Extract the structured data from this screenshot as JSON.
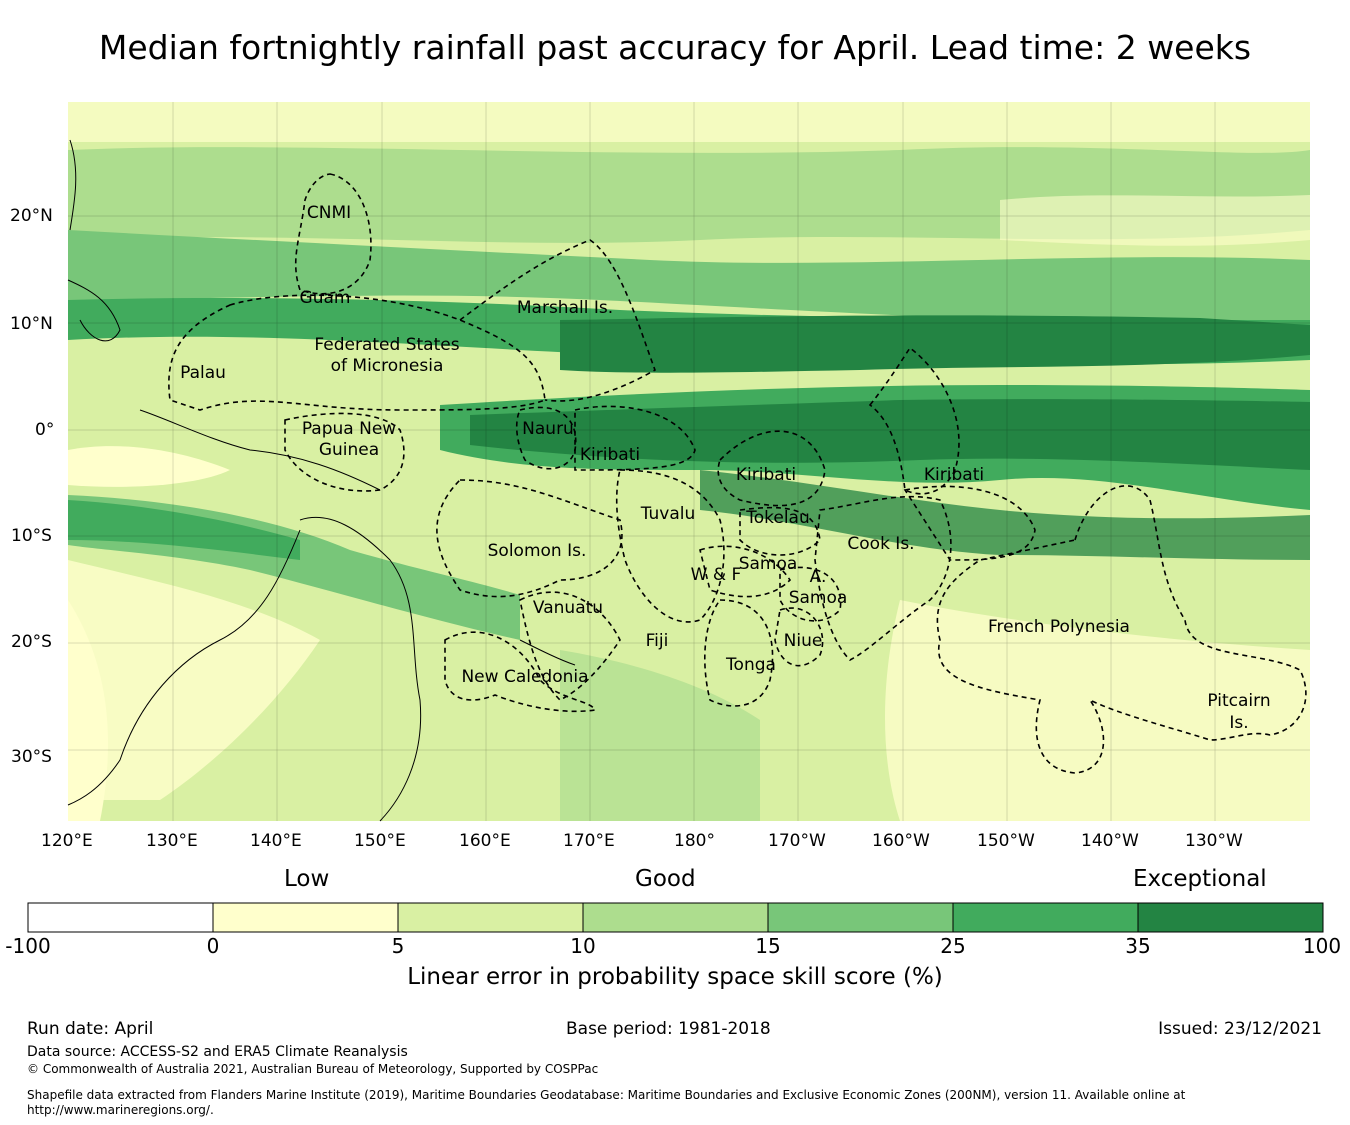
{
  "title": "Median fortnightly rainfall past accuracy for April. Lead time: 2 weeks",
  "map": {
    "lon_labels": [
      "120°E",
      "130°E",
      "140°E",
      "150°E",
      "160°E",
      "170°E",
      "180°",
      "170°W",
      "160°W",
      "150°W",
      "140°W",
      "130°W"
    ],
    "lat_labels": [
      "20°N",
      "10°N",
      "0°",
      "10°S",
      "20°S",
      "30°S"
    ],
    "regions": [
      "CNMI",
      "Guam",
      "Marshall Is.",
      "Federated States",
      "of Micronesia",
      "Palau",
      "Papua New",
      "Guinea",
      "Nauru",
      "Kiribati",
      "Kiribati",
      "Kiribati",
      "Tuvalu",
      "Tokelau",
      "Solomon Is.",
      "Samoa",
      "W & F",
      "A.",
      "Samoa",
      "Cook Is.",
      "Vanuatu",
      "Fiji",
      "Niue",
      "Tonga",
      "French Polynesia",
      "New Caledonia",
      "Pitcairn",
      "Is."
    ]
  },
  "colorbar": {
    "category_labels": [
      "Low",
      "Good",
      "Exceptional"
    ],
    "ticks": [
      "-100",
      "0",
      "5",
      "10",
      "15",
      "25",
      "35",
      "100"
    ],
    "colors": [
      "#ffffff",
      "#ffffcc",
      "#d9f0a3",
      "#addd8e",
      "#78c679",
      "#41ab5d",
      "#238443"
    ],
    "label": "Linear error in probability space skill score (%)"
  },
  "footer": {
    "run_date": "Run date: April",
    "base_period": "Base period: 1981-2018",
    "issued": "Issued: 23/12/2021",
    "data_source": "Data source: ACCESS-S2 and ERA5 Climate Reanalysis",
    "copyright": "© Commonwealth of Australia 2021, Australian Bureau of Meteorology, Supported by COSPPac",
    "shapefile_1": "Shapefile data extracted from Flanders Marine Institute (2019), Maritime Boundaries Geodatabase: Maritime Boundaries and Exclusive Economic Zones (200NM), version 11. Available online at",
    "shapefile_2": "http://www.marineregions.org/."
  }
}
